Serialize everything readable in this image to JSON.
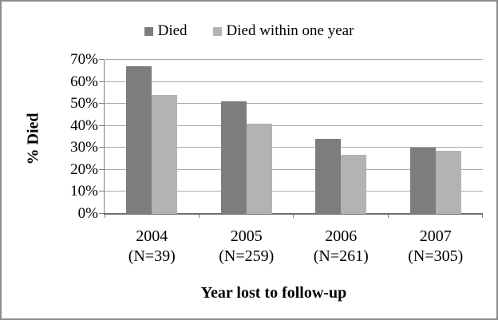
{
  "chart_data": {
    "type": "bar",
    "title": "",
    "categories": [
      "2004",
      "2005",
      "2006",
      "2007"
    ],
    "category_sublabels": [
      "(N=39)",
      "(N=259)",
      "(N=261)",
      "(N=305)"
    ],
    "series": [
      {
        "name": "Died",
        "color": "#7d7d7d",
        "values": [
          67,
          51,
          34,
          30
        ]
      },
      {
        "name": "Died within one year",
        "color": "#b3b3b3",
        "values": [
          54,
          41,
          27,
          28.5
        ]
      }
    ],
    "xlabel": "Year lost to follow-up",
    "ylabel": "% Died",
    "ylim": [
      0,
      70
    ],
    "ytick_step": 10,
    "ytick_labels": [
      "0%",
      "10%",
      "20%",
      "30%",
      "40%",
      "50%",
      "60%",
      "70%"
    ],
    "grid": "horizontal",
    "legend_position": "top"
  },
  "colors": {
    "background": "#ffffff",
    "frame_border": "#8c8c8c",
    "gridline": "#a9a9a9",
    "axis_line": "#808080",
    "x_axis_line": "#6e6e6e",
    "text": "#000000"
  }
}
